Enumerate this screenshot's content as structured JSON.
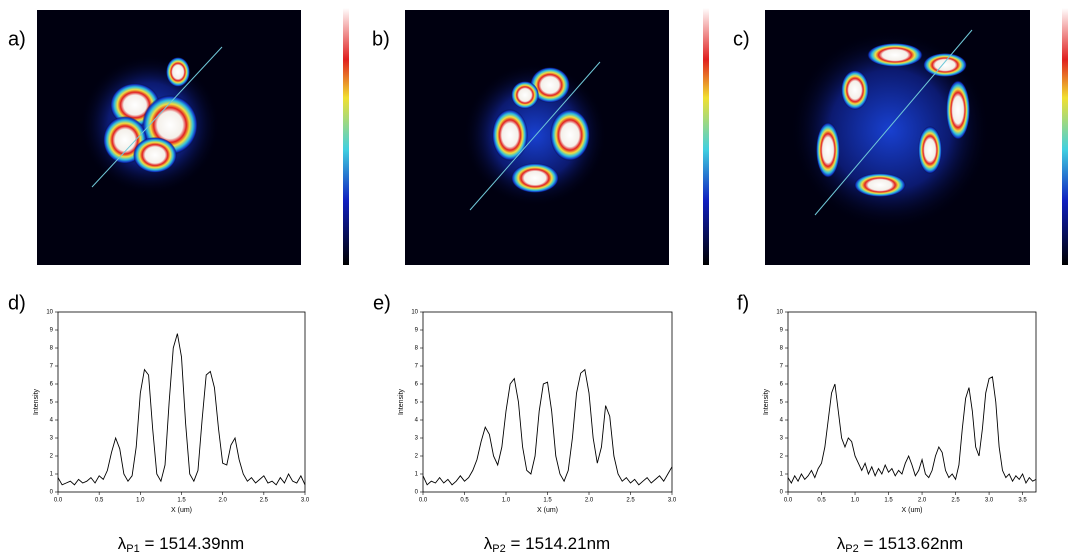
{
  "image_panels": [
    {
      "label": "a)"
    },
    {
      "label": "b)"
    },
    {
      "label": "c)"
    }
  ],
  "chart_data": [
    {
      "type": "line",
      "panel_label": "d)",
      "xlabel": "X (um)",
      "ylabel": "Intensity",
      "caption": {
        "symbol": "λ",
        "subscript": "P1",
        "text": " = 1514.39nm"
      },
      "xlim": [
        0,
        3
      ],
      "ylim": [
        0,
        10
      ],
      "xticks": [
        {
          "value": 0,
          "label": "0.0"
        },
        {
          "value": 0.5,
          "label": "0.5"
        },
        {
          "value": 1,
          "label": "1.0"
        },
        {
          "value": 1.5,
          "label": "1.5"
        },
        {
          "value": 2,
          "label": "2.0"
        },
        {
          "value": 2.5,
          "label": "2.5"
        },
        {
          "value": 3,
          "label": "3.0"
        }
      ],
      "yticks": [
        0,
        1,
        2,
        3,
        4,
        5,
        6,
        7,
        8,
        9,
        10
      ],
      "series": [
        {
          "color": "#000000",
          "x": [
            0,
            0.05,
            0.1,
            0.15,
            0.2,
            0.25,
            0.3,
            0.35,
            0.4,
            0.45,
            0.5,
            0.55,
            0.6,
            0.65,
            0.7,
            0.75,
            0.8,
            0.85,
            0.9,
            0.95,
            1,
            1.05,
            1.1,
            1.15,
            1.2,
            1.25,
            1.3,
            1.35,
            1.4,
            1.45,
            1.5,
            1.55,
            1.6,
            1.65,
            1.7,
            1.75,
            1.8,
            1.85,
            1.9,
            1.95,
            2,
            2.05,
            2.1,
            2.15,
            2.2,
            2.25,
            2.3,
            2.35,
            2.4,
            2.45,
            2.5,
            2.55,
            2.6,
            2.65,
            2.7,
            2.75,
            2.8,
            2.85,
            2.9,
            2.95,
            3
          ],
          "values": [
            0.8,
            0.4,
            0.5,
            0.6,
            0.4,
            0.7,
            0.5,
            0.6,
            0.8,
            0.5,
            0.9,
            0.7,
            1.2,
            2.2,
            3.0,
            2.4,
            1.0,
            0.6,
            0.9,
            2.5,
            5.5,
            6.8,
            6.5,
            3.5,
            1.0,
            0.6,
            1.5,
            5.0,
            8.0,
            8.8,
            7.5,
            3.8,
            1.0,
            0.6,
            1.2,
            4.0,
            6.5,
            6.7,
            5.8,
            3.5,
            1.6,
            1.5,
            2.6,
            3.0,
            1.8,
            1.0,
            0.6,
            0.8,
            0.5,
            0.7,
            0.9,
            0.5,
            0.6,
            0.4,
            0.8,
            0.5,
            1.0,
            0.6,
            0.5,
            0.9,
            0.4
          ]
        }
      ]
    },
    {
      "type": "line",
      "panel_label": "e)",
      "xlabel": "X (um)",
      "ylabel": "Intensity",
      "caption": {
        "symbol": "λ",
        "subscript": "P2",
        "text": " = 1514.21nm"
      },
      "xlim": [
        0,
        3
      ],
      "ylim": [
        0,
        10
      ],
      "xticks": [
        {
          "value": 0,
          "label": "0.0"
        },
        {
          "value": 0.5,
          "label": "0.5"
        },
        {
          "value": 1,
          "label": "1.0"
        },
        {
          "value": 1.5,
          "label": "1.5"
        },
        {
          "value": 2,
          "label": "2.0"
        },
        {
          "value": 2.5,
          "label": "2.5"
        },
        {
          "value": 3,
          "label": "3.0"
        }
      ],
      "yticks": [
        0,
        1,
        2,
        3,
        4,
        5,
        6,
        7,
        8,
        9,
        10
      ],
      "series": [
        {
          "color": "#000000",
          "x": [
            0,
            0.05,
            0.1,
            0.15,
            0.2,
            0.25,
            0.3,
            0.35,
            0.4,
            0.45,
            0.5,
            0.55,
            0.6,
            0.65,
            0.7,
            0.75,
            0.8,
            0.85,
            0.9,
            0.95,
            1,
            1.05,
            1.1,
            1.15,
            1.2,
            1.25,
            1.3,
            1.35,
            1.4,
            1.45,
            1.5,
            1.55,
            1.6,
            1.65,
            1.7,
            1.75,
            1.8,
            1.85,
            1.9,
            1.95,
            2,
            2.05,
            2.1,
            2.15,
            2.2,
            2.25,
            2.3,
            2.35,
            2.4,
            2.45,
            2.5,
            2.55,
            2.6,
            2.65,
            2.7,
            2.75,
            2.8,
            2.85,
            2.9,
            2.95,
            3
          ],
          "values": [
            0.9,
            0.4,
            0.6,
            0.5,
            0.8,
            0.5,
            0.7,
            0.4,
            0.6,
            0.9,
            0.6,
            0.8,
            1.2,
            1.8,
            2.8,
            3.6,
            3.2,
            2.0,
            1.5,
            2.5,
            4.5,
            6.0,
            6.3,
            5.0,
            2.5,
            1.2,
            1.0,
            2.0,
            4.5,
            6.0,
            6.1,
            4.5,
            2.0,
            1.0,
            0.6,
            1.2,
            3.0,
            5.5,
            6.6,
            6.8,
            5.5,
            3.0,
            1.6,
            2.5,
            4.8,
            4.2,
            2.0,
            1.0,
            0.6,
            0.8,
            0.5,
            0.7,
            0.4,
            0.6,
            0.8,
            0.5,
            0.7,
            0.9,
            0.6,
            1.0,
            1.4
          ]
        }
      ]
    },
    {
      "type": "line",
      "panel_label": "f)",
      "xlabel": "X (um)",
      "ylabel": "Intensity",
      "caption": {
        "symbol": "λ",
        "subscript": "P2",
        "text": " = 1513.62nm"
      },
      "xlim": [
        0,
        3.7
      ],
      "ylim": [
        0,
        10
      ],
      "xticks": [
        {
          "value": 0,
          "label": "0.0"
        },
        {
          "value": 0.5,
          "label": "0.5"
        },
        {
          "value": 1,
          "label": "1.0"
        },
        {
          "value": 1.5,
          "label": "1.5"
        },
        {
          "value": 2,
          "label": "2.0"
        },
        {
          "value": 2.5,
          "label": "2.5"
        },
        {
          "value": 3,
          "label": "3.0"
        },
        {
          "value": 3.5,
          "label": "3.5"
        }
      ],
      "yticks": [
        0,
        1,
        2,
        3,
        4,
        5,
        6,
        7,
        8,
        9,
        10
      ],
      "series": [
        {
          "color": "#000000",
          "x": [
            0,
            0.05,
            0.1,
            0.15,
            0.2,
            0.25,
            0.3,
            0.35,
            0.4,
            0.45,
            0.5,
            0.55,
            0.6,
            0.65,
            0.7,
            0.75,
            0.8,
            0.85,
            0.9,
            0.95,
            1,
            1.05,
            1.1,
            1.15,
            1.2,
            1.25,
            1.3,
            1.35,
            1.4,
            1.45,
            1.5,
            1.55,
            1.6,
            1.65,
            1.7,
            1.75,
            1.8,
            1.85,
            1.9,
            1.95,
            2,
            2.05,
            2.1,
            2.15,
            2.2,
            2.25,
            2.3,
            2.35,
            2.4,
            2.45,
            2.5,
            2.55,
            2.6,
            2.65,
            2.7,
            2.75,
            2.8,
            2.85,
            2.9,
            2.95,
            3,
            3.05,
            3.1,
            3.15,
            3.2,
            3.25,
            3.3,
            3.35,
            3.4,
            3.45,
            3.5,
            3.55,
            3.6,
            3.65,
            3.7
          ],
          "values": [
            0.8,
            0.5,
            0.9,
            0.6,
            1.0,
            0.7,
            0.9,
            1.2,
            0.8,
            1.3,
            1.6,
            2.5,
            4.0,
            5.5,
            6.0,
            4.5,
            3.0,
            2.5,
            3.0,
            2.8,
            2.0,
            1.6,
            1.2,
            1.6,
            1.0,
            1.4,
            0.9,
            1.3,
            1.0,
            1.5,
            1.1,
            1.3,
            0.9,
            1.2,
            1.0,
            1.6,
            2.0,
            1.5,
            0.9,
            1.2,
            1.8,
            1.0,
            0.8,
            1.2,
            2.0,
            2.5,
            2.2,
            1.2,
            0.8,
            1.0,
            0.7,
            1.5,
            3.5,
            5.2,
            5.8,
            4.5,
            2.5,
            2.0,
            3.5,
            5.5,
            6.3,
            6.4,
            5.0,
            2.5,
            1.2,
            0.8,
            1.0,
            0.6,
            0.9,
            0.7,
            1.0,
            0.5,
            0.8,
            0.6,
            0.7
          ]
        }
      ]
    }
  ]
}
